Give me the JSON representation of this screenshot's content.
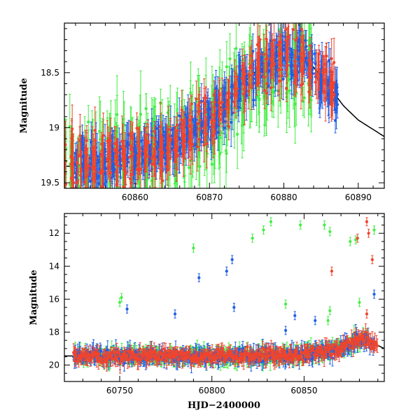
{
  "chart_data": [
    {
      "type": "scatter",
      "panel": "top",
      "title": "",
      "xlabel": "",
      "ylabel": "Magnitude",
      "xlim": [
        60850.5,
        60893.5
      ],
      "ylim": [
        19.55,
        18.05
      ],
      "y_inverted": true,
      "xticks": [
        60860,
        60870,
        60880,
        60890
      ],
      "yticks": [
        18.5,
        19,
        19.5
      ],
      "ytick_labels": [
        "18.5",
        "19",
        "19.5"
      ],
      "grid": false,
      "legend": "none",
      "colors": {
        "green": "#44ee44",
        "blue": "#1f5fe6",
        "red": "#f0442c",
        "model": "#000000"
      },
      "model_curve": {
        "name": "",
        "x": [
          60851,
          60855,
          60860,
          60865,
          60868,
          60870,
          60872,
          60874,
          60876,
          60878,
          60880,
          60882,
          60884,
          60886,
          60888,
          60890,
          60893.5
        ],
        "y": [
          19.35,
          19.32,
          19.26,
          19.14,
          19.02,
          18.92,
          18.78,
          18.63,
          18.5,
          18.42,
          18.36,
          18.36,
          18.45,
          18.62,
          18.8,
          18.93,
          19.08
        ]
      },
      "series": [
        {
          "name": "",
          "color": "green",
          "x_range": [
            60850.5,
            60884
          ],
          "trend": "rising",
          "scatter_mag": 0.55
        },
        {
          "name": "",
          "color": "blue",
          "x_range": [
            60852,
            60887
          ],
          "trend": "rising",
          "scatter_mag": 0.3
        },
        {
          "name": "",
          "color": "red",
          "x_range": [
            60850.5,
            60887
          ],
          "trend": "rising",
          "scatter_mag": 0.4
        }
      ]
    },
    {
      "type": "scatter",
      "panel": "bottom",
      "title": "",
      "xlabel": "HJD−2400000",
      "ylabel": "Magnitude",
      "xlim": [
        60720,
        60893.5
      ],
      "ylim": [
        21.0,
        10.8
      ],
      "y_inverted": true,
      "xticks": [
        60750,
        60800,
        60850
      ],
      "yticks": [
        12,
        14,
        16,
        18,
        20
      ],
      "ytick_labels": [
        "12",
        "14",
        "16",
        "18",
        "20"
      ],
      "grid": false,
      "legend": "none",
      "model_curve": {
        "name": "",
        "x": [
          60720,
          60760,
          60800,
          60840,
          60860,
          60870,
          60878,
          60883,
          60888,
          60893.5
        ],
        "y": [
          19.45,
          19.45,
          19.45,
          19.42,
          19.25,
          19.0,
          18.6,
          18.4,
          18.7,
          19.0
        ]
      },
      "series": [
        {
          "name": "",
          "color": "green",
          "x_range": [
            60725,
            60885
          ],
          "baseline": 19.4
        },
        {
          "name": "",
          "color": "blue",
          "x_range": [
            60725,
            60888
          ],
          "baseline": 19.4
        },
        {
          "name": "",
          "color": "red",
          "x_range": [
            60725,
            60890
          ],
          "baseline": 19.5
        }
      ],
      "outliers": [
        {
          "color": "green",
          "x": 60750,
          "y": 16.2
        },
        {
          "color": "green",
          "x": 60751,
          "y": 15.9
        },
        {
          "color": "blue",
          "x": 60754,
          "y": 16.6
        },
        {
          "color": "blue",
          "x": 60780,
          "y": 16.9
        },
        {
          "color": "green",
          "x": 60790,
          "y": 12.9
        },
        {
          "color": "blue",
          "x": 60793,
          "y": 14.7
        },
        {
          "color": "blue",
          "x": 60808,
          "y": 14.3
        },
        {
          "color": "blue",
          "x": 60811,
          "y": 13.6
        },
        {
          "color": "blue",
          "x": 60812,
          "y": 16.5
        },
        {
          "color": "green",
          "x": 60822,
          "y": 12.3
        },
        {
          "color": "green",
          "x": 60828,
          "y": 11.8
        },
        {
          "color": "green",
          "x": 60832,
          "y": 11.3
        },
        {
          "color": "green",
          "x": 60840,
          "y": 16.3
        },
        {
          "color": "blue",
          "x": 60840,
          "y": 17.9
        },
        {
          "color": "blue",
          "x": 60845,
          "y": 17.0
        },
        {
          "color": "green",
          "x": 60848,
          "y": 11.5
        },
        {
          "color": "blue",
          "x": 60856,
          "y": 17.3
        },
        {
          "color": "green",
          "x": 60861,
          "y": 11.5
        },
        {
          "color": "green",
          "x": 60864,
          "y": 11.9
        },
        {
          "color": "green",
          "x": 60864,
          "y": 16.7
        },
        {
          "color": "green",
          "x": 60863,
          "y": 17.3
        },
        {
          "color": "red",
          "x": 60865,
          "y": 14.3
        },
        {
          "color": "green",
          "x": 60875,
          "y": 12.5
        },
        {
          "color": "green",
          "x": 60878,
          "y": 12.4
        },
        {
          "color": "red",
          "x": 60879,
          "y": 12.3
        },
        {
          "color": "red",
          "x": 60884,
          "y": 11.3
        },
        {
          "color": "red",
          "x": 60885,
          "y": 12.0
        },
        {
          "color": "green",
          "x": 60888,
          "y": 11.8
        },
        {
          "color": "red",
          "x": 60887,
          "y": 13.6
        },
        {
          "color": "blue",
          "x": 60888,
          "y": 15.7
        },
        {
          "color": "red",
          "x": 60884,
          "y": 16.9
        },
        {
          "color": "green",
          "x": 60880,
          "y": 16.2
        }
      ]
    }
  ]
}
